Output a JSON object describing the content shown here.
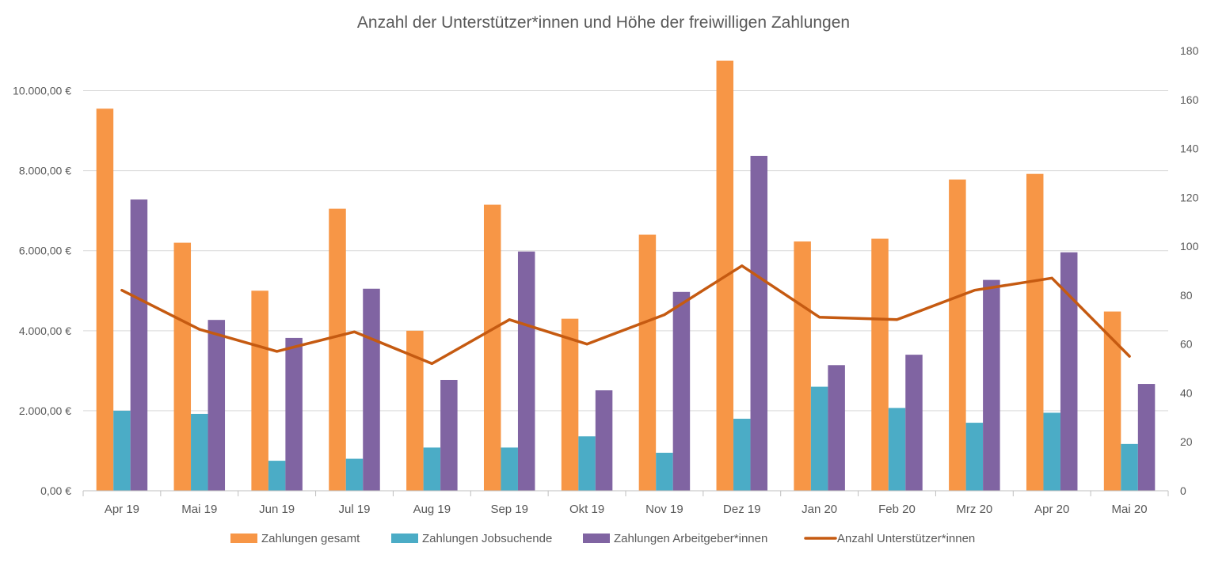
{
  "chart_data": {
    "type": "bar",
    "title": "Anzahl der Unterstützer*innen und Höhe der freiwilligen Zahlungen",
    "categories": [
      "Apr 19",
      "Mai 19",
      "Jun 19",
      "Jul 19",
      "Aug 19",
      "Sep 19",
      "Okt 19",
      "Nov 19",
      "Dez 19",
      "Jan 20",
      "Feb 20",
      "Mrz 20",
      "Apr 20",
      "Mai 20"
    ],
    "series": [
      {
        "name": "Zahlungen gesamt",
        "type": "bar",
        "axis": "left",
        "color": "#F79646",
        "values": [
          9550,
          6200,
          5000,
          7050,
          4000,
          7150,
          4300,
          6400,
          10750,
          6230,
          6300,
          7780,
          7920,
          4480
        ]
      },
      {
        "name": "Zahlungen Jobsuchende",
        "type": "bar",
        "axis": "left",
        "color": "#4BACC6",
        "values": [
          2000,
          1920,
          750,
          800,
          1080,
          1080,
          1360,
          950,
          1800,
          2600,
          2070,
          1700,
          1950,
          1170
        ]
      },
      {
        "name": "Zahlungen Arbeitgeber*innen",
        "type": "bar",
        "axis": "left",
        "color": "#8064A2",
        "values": [
          7280,
          4270,
          3820,
          5050,
          2770,
          5980,
          2510,
          4970,
          8370,
          3140,
          3400,
          5270,
          5960,
          2670
        ]
      },
      {
        "name": "Anzahl Unterstützer*innen",
        "type": "line",
        "axis": "right",
        "color": "#C55A11",
        "values": [
          82,
          66,
          57,
          65,
          52,
          70,
          60,
          72,
          92,
          71,
          70,
          82,
          87,
          55
        ]
      }
    ],
    "y_left": {
      "range": [
        0,
        11000
      ],
      "ticks": [
        0,
        2000,
        4000,
        6000,
        8000,
        10000
      ],
      "tick_labels": [
        "0,00 €",
        "2.000,00 €",
        "4.000,00 €",
        "6.000,00 €",
        "8.000,00 €",
        "10.000,00 €"
      ]
    },
    "y_right": {
      "range": [
        0,
        180
      ],
      "ticks": [
        0,
        20,
        40,
        60,
        80,
        100,
        120,
        140,
        160,
        180
      ],
      "tick_labels": [
        "0",
        "20",
        "40",
        "60",
        "80",
        "100",
        "120",
        "140",
        "160",
        "180"
      ]
    },
    "grid": true,
    "legend": "bottom",
    "colors": {
      "grid": "#d9d9d9",
      "axis": "#bfbfbf",
      "text": "#595959"
    }
  }
}
